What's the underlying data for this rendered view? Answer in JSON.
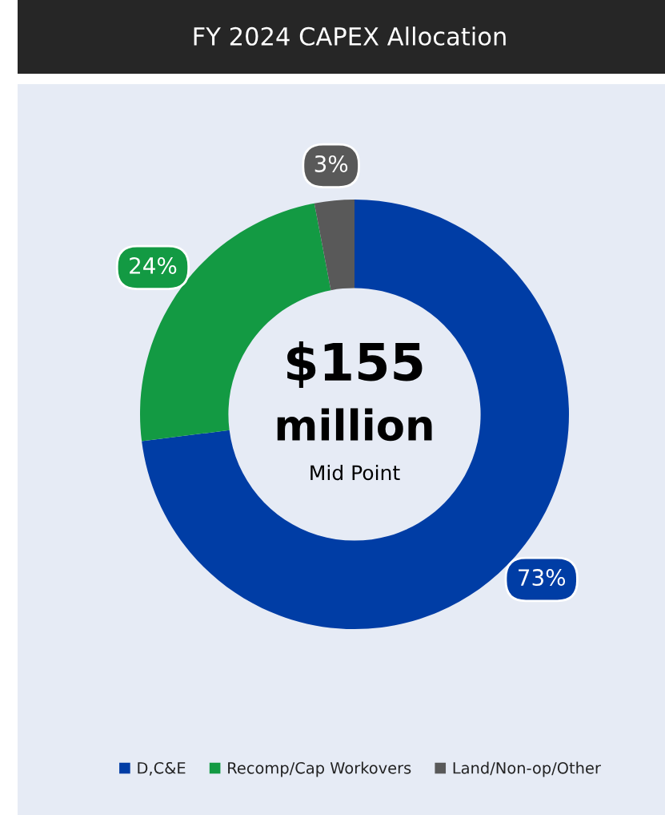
{
  "chart_data": {
    "type": "donut",
    "title": "FY 2024 CAPEX Allocation",
    "categories": [
      "D,C&E",
      "Recomp/Cap Workovers",
      "Land/Non-op/Other"
    ],
    "values": [
      73,
      24,
      3
    ],
    "colors": [
      "#003da5",
      "#139a43",
      "#595959"
    ],
    "value_labels": [
      "73%",
      "24%",
      "3%"
    ],
    "legend": "bottom",
    "annotations": [
      "$155",
      "million",
      "Mid Point"
    ]
  }
}
